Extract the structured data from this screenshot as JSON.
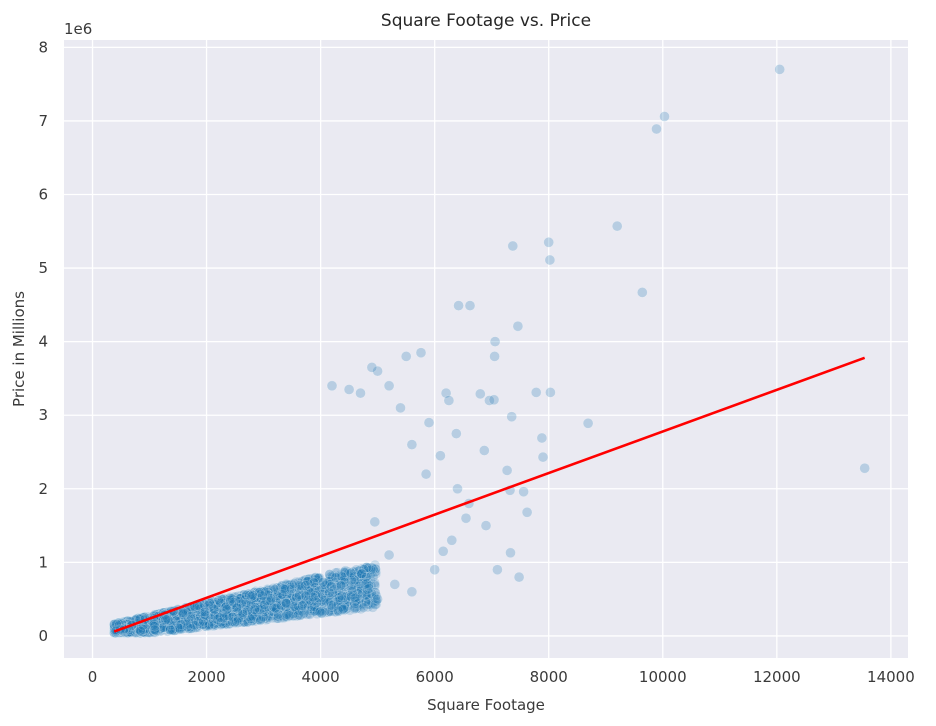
{
  "chart_data": {
    "type": "scatter",
    "title": "Square Footage vs. Price",
    "xlabel": "Square Footage",
    "ylabel": "Price in Millions",
    "y_offset_label": "1e6",
    "xlim": [
      -500,
      14300
    ],
    "ylim": [
      -300000,
      8100000
    ],
    "x_ticks": [
      0,
      2000,
      4000,
      6000,
      8000,
      10000,
      12000,
      14000
    ],
    "x_tick_labels": [
      "0",
      "2000",
      "4000",
      "6000",
      "8000",
      "10000",
      "12000",
      "14000"
    ],
    "y_ticks": [
      0,
      1000000,
      2000000,
      3000000,
      4000000,
      5000000,
      6000000,
      7000000,
      8000000
    ],
    "y_tick_labels": [
      "0",
      "1",
      "2",
      "3",
      "4",
      "5",
      "6",
      "7",
      "8"
    ],
    "grid": true,
    "background": "#EAEAF2",
    "point_color": "#1f77b4",
    "line_color": "#ff0000",
    "points": [
      [
        12050,
        7700000
      ],
      [
        10030,
        7060000
      ],
      [
        9890,
        6890000
      ],
      [
        9200,
        5570000
      ],
      [
        8000,
        5350000
      ],
      [
        8020,
        5110000
      ],
      [
        7370,
        5300000
      ],
      [
        9640,
        4670000
      ],
      [
        6420,
        4490000
      ],
      [
        6620,
        4490000
      ],
      [
        7460,
        4210000
      ],
      [
        7060,
        4000000
      ],
      [
        7050,
        3800000
      ],
      [
        5760,
        3850000
      ],
      [
        5500,
        3800000
      ],
      [
        6960,
        3200000
      ],
      [
        7040,
        3210000
      ],
      [
        8030,
        3310000
      ],
      [
        7780,
        3310000
      ],
      [
        6800,
        3290000
      ],
      [
        7350,
        2980000
      ],
      [
        6200,
        3300000
      ],
      [
        6250,
        3200000
      ],
      [
        8690,
        2890000
      ],
      [
        7880,
        2690000
      ],
      [
        7900,
        2430000
      ],
      [
        6380,
        2750000
      ],
      [
        6870,
        2520000
      ],
      [
        13540,
        2280000
      ],
      [
        7270,
        2250000
      ],
      [
        7560,
        1960000
      ],
      [
        7320,
        1980000
      ],
      [
        7620,
        1680000
      ],
      [
        7330,
        1130000
      ],
      [
        7100,
        900000
      ],
      [
        7480,
        800000
      ],
      [
        6900,
        1500000
      ],
      [
        6550,
        1600000
      ],
      [
        6600,
        1800000
      ],
      [
        6400,
        2000000
      ],
      [
        6300,
        1300000
      ],
      [
        6150,
        1150000
      ],
      [
        6000,
        900000
      ],
      [
        6100,
        2450000
      ],
      [
        5850,
        2200000
      ],
      [
        5900,
        2900000
      ],
      [
        5600,
        2600000
      ],
      [
        5400,
        3100000
      ],
      [
        5200,
        3400000
      ],
      [
        5000,
        3600000
      ],
      [
        4900,
        3650000
      ],
      [
        4700,
        3300000
      ],
      [
        4500,
        3350000
      ],
      [
        4200,
        3400000
      ],
      [
        5600,
        600000
      ],
      [
        5300,
        700000
      ],
      [
        5000,
        500000
      ],
      [
        4800,
        800000
      ],
      [
        5200,
        1100000
      ],
      [
        4950,
        1550000
      ]
    ],
    "regression_line": {
      "x": [
        380,
        13540
      ],
      "y": [
        60000,
        3780000
      ]
    }
  }
}
